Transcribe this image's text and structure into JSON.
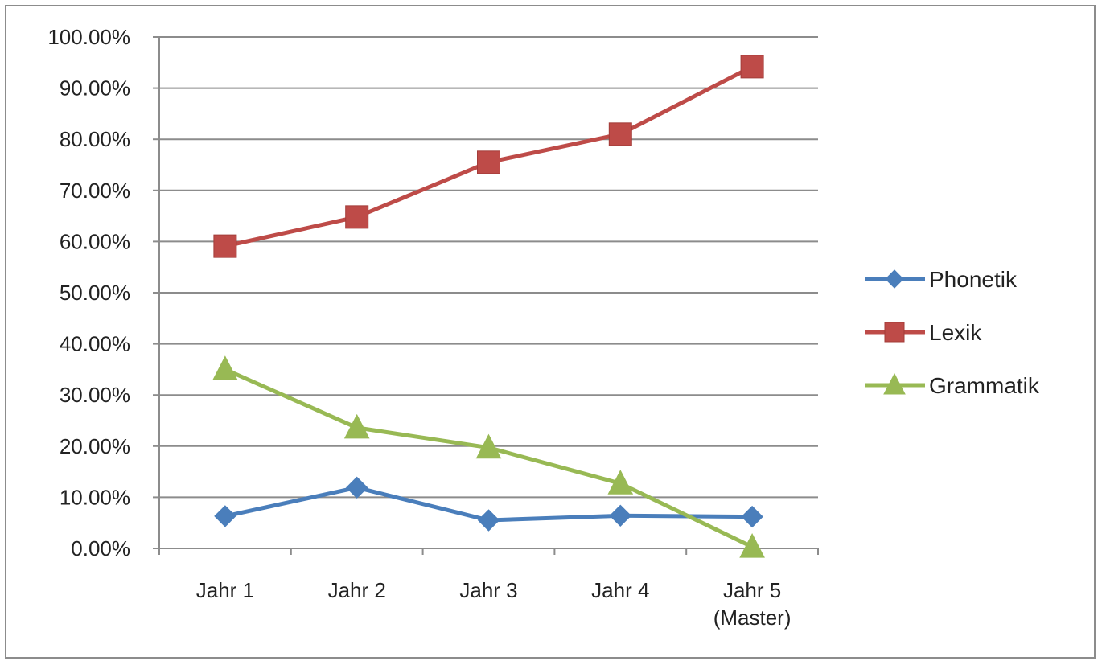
{
  "chart_data": {
    "type": "line",
    "title": "",
    "xlabel": "",
    "ylabel": "",
    "categories": [
      [
        "Jahr 1"
      ],
      [
        "Jahr 2"
      ],
      [
        "Jahr 3"
      ],
      [
        "Jahr 4"
      ],
      [
        "Jahr 5",
        "(Master)"
      ]
    ],
    "ylim": [
      0,
      100
    ],
    "yticks": [
      "0.00%",
      "10.00%",
      "20.00%",
      "30.00%",
      "40.00%",
      "50.00%",
      "60.00%",
      "70.00%",
      "80.00%",
      "90.00%",
      "100.00%"
    ],
    "grid": true,
    "legend_position": "right",
    "series": [
      {
        "name": "Phonetik",
        "color": "#4a7ebb",
        "marker": "diamond",
        "values": [
          6.3,
          11.9,
          5.5,
          6.4,
          6.2
        ]
      },
      {
        "name": "Lexik",
        "color": "#be4b48",
        "marker": "square",
        "values": [
          59.1,
          64.8,
          75.5,
          81.0,
          94.2
        ]
      },
      {
        "name": "Grammatik",
        "color": "#98b954",
        "marker": "triangle",
        "values": [
          35.0,
          23.6,
          19.7,
          12.7,
          0.3
        ]
      }
    ]
  }
}
